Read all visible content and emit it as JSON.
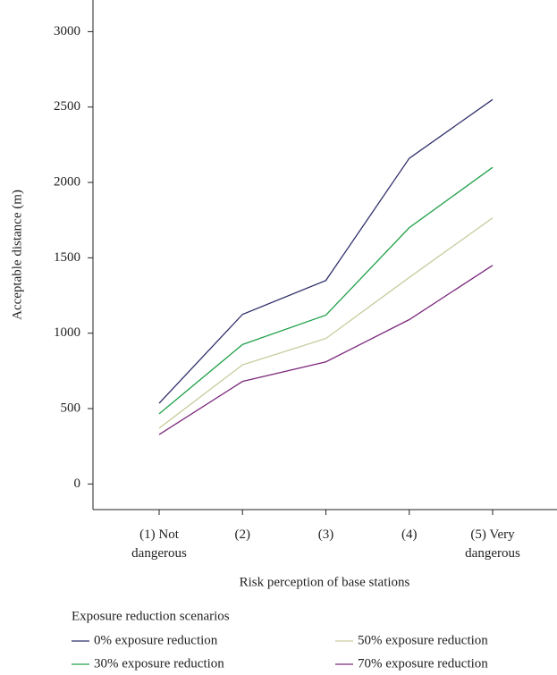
{
  "chart_data": {
    "type": "line",
    "x_label": "Risk perception of base stations",
    "y_label": "Acceptable distance (m)",
    "categories": [
      "(1) Not\ndangerous",
      "(2)",
      "(3)",
      "(4)",
      "(5) Very\ndangerous"
    ],
    "series": [
      {
        "name": "0% exposure reduction",
        "color": "#2f2f6b",
        "values": [
          535,
          1125,
          1350,
          2160,
          2550
        ]
      },
      {
        "name": "30% exposure reduction",
        "color": "#22a04a",
        "values": [
          465,
          925,
          1120,
          1700,
          2100
        ]
      },
      {
        "name": "50% exposure reduction",
        "color": "#c9cc9f",
        "values": [
          370,
          790,
          965,
          1370,
          1765
        ]
      },
      {
        "name": "70% exposure reduction",
        "color": "#7b2a7b",
        "values": [
          328,
          680,
          810,
          1090,
          1450
        ]
      }
    ],
    "legend_title": "Exposure reduction scenarios",
    "ylim": [
      -170,
      3210
    ],
    "yticks": [
      0,
      500,
      1000,
      1500,
      2000,
      2500,
      3000
    ]
  }
}
